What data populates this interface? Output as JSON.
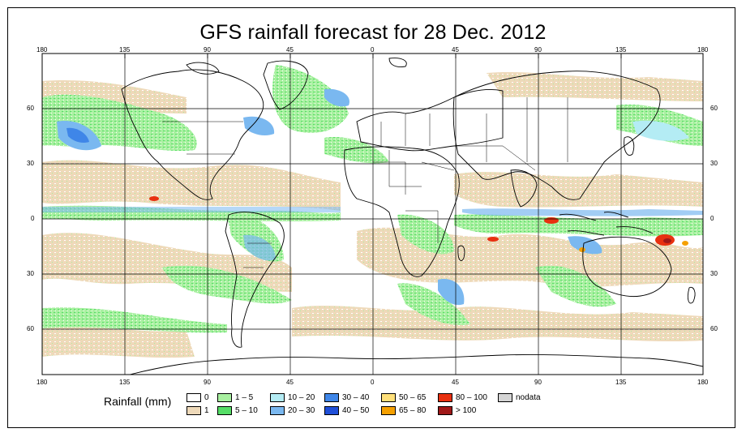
{
  "title": "GFS rainfall forecast for 28 Dec. 2012",
  "map": {
    "top_lon_ticks": [
      "180",
      "135",
      "90",
      "45",
      "0",
      "45",
      "90",
      "135",
      "180"
    ],
    "bottom_lon_ticks": [
      "180",
      "135",
      "90",
      "45",
      "0",
      "45",
      "90",
      "135",
      "180"
    ],
    "left_lat_ticks": [
      "60",
      "30",
      "0",
      "30",
      "60"
    ],
    "right_lat_ticks": [
      "60",
      "30",
      "0",
      "30",
      "60"
    ]
  },
  "legend": {
    "title": "Rainfall (mm)",
    "items": [
      {
        "label": "0",
        "color": "#ffffff"
      },
      {
        "label": "1",
        "color": "#eed9b9"
      },
      {
        "label": "1 – 5",
        "color": "#a8f0a0"
      },
      {
        "label": "5 – 10",
        "color": "#55dd66"
      },
      {
        "label": "10 – 20",
        "color": "#b4ecf4"
      },
      {
        "label": "20 – 30",
        "color": "#7ab8f0"
      },
      {
        "label": "30 – 40",
        "color": "#3f86e8"
      },
      {
        "label": "40 – 50",
        "color": "#1f4fd8"
      },
      {
        "label": "50 – 65",
        "color": "#ffe07a"
      },
      {
        "label": "65 – 80",
        "color": "#f5a000"
      },
      {
        "label": "80 – 100",
        "color": "#e83010"
      },
      {
        "label": "> 100",
        "color": "#a01818"
      },
      {
        "label": "nodata",
        "color": "#d4d4d4"
      }
    ]
  },
  "colors": {
    "ocean": "#ffffff",
    "light_rain": "#eed9b9",
    "coast": "#000000",
    "grid": "#000000"
  }
}
